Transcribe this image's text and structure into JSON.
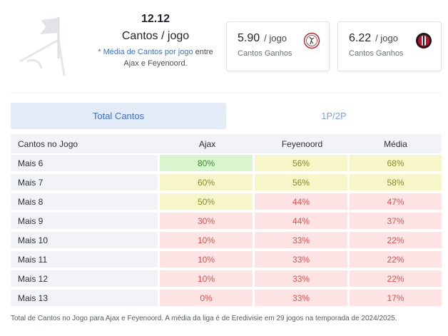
{
  "summary": {
    "total": "12.12",
    "title": "Cantos / jogo",
    "note_link": "* Média de Cantos por jogo",
    "note_rest_1": " entre",
    "note_rest_2": "Ajax e Feyenoord."
  },
  "cards": [
    {
      "value": "5.90",
      "unit": "/ jogo",
      "label": "Cantos Ganhos",
      "crest_icon": "ajax-crest-icon"
    },
    {
      "value": "6.22",
      "unit": "/ jogo",
      "label": "Cantos Ganhos",
      "crest_icon": "feyenoord-crest-icon"
    }
  ],
  "tabs": [
    {
      "label": "Total Cantos",
      "active": true
    },
    {
      "label": "1P/2P",
      "active": false
    }
  ],
  "table": {
    "headers": [
      "Cantos no Jogo",
      "Ajax",
      "Feyenoord",
      "Média"
    ],
    "rows": [
      {
        "label": "Mais 6",
        "values": [
          "80%",
          "56%",
          "68%"
        ],
        "levels": [
          "high",
          "mid",
          "mid"
        ]
      },
      {
        "label": "Mais 7",
        "values": [
          "60%",
          "56%",
          "58%"
        ],
        "levels": [
          "mid",
          "mid",
          "mid"
        ]
      },
      {
        "label": "Mais 8",
        "values": [
          "50%",
          "44%",
          "47%"
        ],
        "levels": [
          "mid",
          "low",
          "low"
        ]
      },
      {
        "label": "Mais 9",
        "values": [
          "30%",
          "44%",
          "37%"
        ],
        "levels": [
          "low",
          "low",
          "low"
        ]
      },
      {
        "label": "Mais 10",
        "values": [
          "10%",
          "33%",
          "22%"
        ],
        "levels": [
          "low",
          "low",
          "low"
        ]
      },
      {
        "label": "Mais 11",
        "values": [
          "10%",
          "33%",
          "22%"
        ],
        "levels": [
          "low",
          "low",
          "low"
        ]
      },
      {
        "label": "Mais 12",
        "values": [
          "10%",
          "33%",
          "22%"
        ],
        "levels": [
          "low",
          "low",
          "low"
        ]
      },
      {
        "label": "Mais 13",
        "values": [
          "0%",
          "33%",
          "17%"
        ],
        "levels": [
          "low",
          "low",
          "low"
        ]
      }
    ]
  },
  "footnote": "Total de Cantos no Jogo para Ajax e Feyenoord. A média da liga é de Eredivisie em 29 jogos na temporada de 2024/2025.",
  "colors": {
    "accent": "#3b73c9",
    "high_bg": "#d8f5cd",
    "mid_bg": "#f6f6c9",
    "low_bg": "#fde3e3",
    "low_text": "#d9534f"
  }
}
